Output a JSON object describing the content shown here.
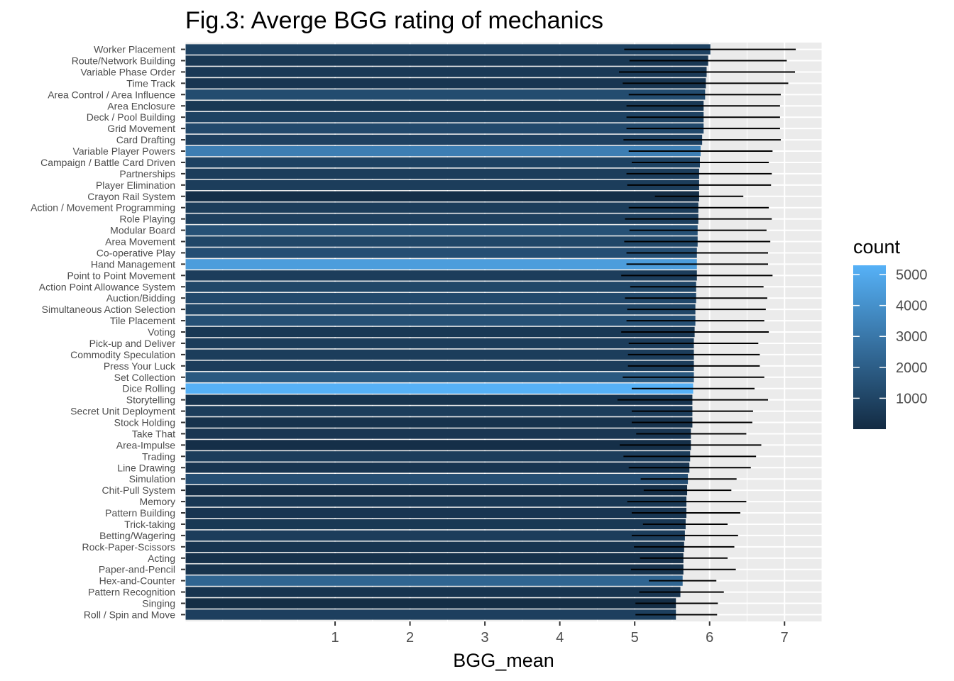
{
  "chart_data": {
    "type": "bar",
    "orientation": "horizontal",
    "title": "Fig.3: Averge BGG rating of mechanics",
    "xlabel": "BGG_mean",
    "ylabel": "",
    "xlim": [
      -1.0,
      7.5
    ],
    "x_ticks": [
      1,
      2,
      3,
      4,
      5,
      6,
      7
    ],
    "grid": true,
    "legend": {
      "title": "count",
      "position": "right",
      "range": [
        0,
        5300
      ],
      "ticks": [
        1000,
        2000,
        3000,
        4000,
        5000
      ],
      "color_low": "#132B43",
      "color_high": "#56B1F7"
    },
    "bar_start": -0.995,
    "categories": [
      "Worker Placement",
      "Route/Network Building",
      "Variable Phase Order",
      "Time Track",
      "Area Control / Area Influence",
      "Area Enclosure",
      "Deck / Pool Building",
      "Grid Movement",
      "Card Drafting",
      "Variable Player Powers",
      "Campaign / Battle Card Driven",
      "Partnerships",
      "Player Elimination",
      "Crayon Rail System",
      "Action / Movement Programming",
      "Role Playing",
      "Modular Board",
      "Area Movement",
      "Co-operative Play",
      "Hand Management",
      "Point to Point Movement",
      "Action Point Allowance System",
      "Auction/Bidding",
      "Simultaneous Action Selection",
      "Tile Placement",
      "Voting",
      "Pick-up and Deliver",
      "Commodity Speculation",
      "Press Your Luck",
      "Set Collection",
      "Dice Rolling",
      "Storytelling",
      "Secret Unit Deployment",
      "Stock Holding",
      "Take That",
      "Area-Impulse",
      "Trading",
      "Line Drawing",
      "Simulation",
      "Chit-Pull System",
      "Memory",
      "Pattern Building",
      "Trick-taking",
      "Betting/Wagering",
      "Rock-Paper-Scissors",
      "Acting",
      "Paper-and-Pencil",
      "Hex-and-Counter",
      "Pattern Recognition",
      "Singing",
      "Roll / Spin and Move"
    ],
    "series": [
      {
        "values": [
          6.01,
          5.98,
          5.96,
          5.95,
          5.94,
          5.92,
          5.92,
          5.92,
          5.9,
          5.88,
          5.87,
          5.86,
          5.86,
          5.86,
          5.85,
          5.85,
          5.84,
          5.84,
          5.83,
          5.83,
          5.83,
          5.82,
          5.82,
          5.81,
          5.81,
          5.8,
          5.79,
          5.79,
          5.79,
          5.79,
          5.78,
          5.77,
          5.77,
          5.77,
          5.75,
          5.75,
          5.74,
          5.73,
          5.71,
          5.7,
          5.69,
          5.69,
          5.68,
          5.67,
          5.66,
          5.65,
          5.65,
          5.64,
          5.61,
          5.55,
          5.55
        ],
        "lower": [
          4.86,
          4.93,
          4.79,
          4.84,
          4.92,
          4.89,
          4.89,
          4.89,
          4.85,
          4.92,
          4.96,
          4.89,
          4.9,
          5.27,
          4.92,
          4.87,
          4.93,
          4.86,
          4.89,
          4.89,
          4.82,
          4.94,
          4.87,
          4.9,
          4.89,
          4.82,
          4.92,
          4.91,
          4.91,
          4.84,
          4.96,
          4.77,
          4.96,
          4.96,
          5.02,
          4.8,
          4.85,
          4.92,
          5.08,
          5.12,
          4.9,
          4.96,
          5.11,
          4.96,
          4.99,
          5.07,
          4.95,
          5.19,
          5.06,
          5.01,
          5.01
        ],
        "upper": [
          7.15,
          7.03,
          7.14,
          7.05,
          6.95,
          6.94,
          6.94,
          6.94,
          6.95,
          6.84,
          6.79,
          6.83,
          6.82,
          6.45,
          6.79,
          6.83,
          6.76,
          6.81,
          6.78,
          6.78,
          6.84,
          6.72,
          6.77,
          6.75,
          6.73,
          6.79,
          6.65,
          6.67,
          6.67,
          6.73,
          6.6,
          6.78,
          6.58,
          6.57,
          6.49,
          6.69,
          6.62,
          6.55,
          6.36,
          6.29,
          6.49,
          6.41,
          6.24,
          6.38,
          6.33,
          6.24,
          6.35,
          6.09,
          6.19,
          6.11,
          6.1
        ],
        "count": [
          900,
          500,
          550,
          400,
          1300,
          500,
          900,
          1200,
          850,
          3300,
          900,
          700,
          700,
          150,
          700,
          800,
          1500,
          1100,
          1400,
          4500,
          700,
          1100,
          1200,
          1100,
          1500,
          500,
          700,
          700,
          700,
          1800,
          5300,
          350,
          700,
          300,
          450,
          150,
          700,
          400,
          1400,
          150,
          500,
          400,
          500,
          700,
          400,
          250,
          300,
          2300,
          350,
          100,
          800
        ]
      }
    ]
  }
}
